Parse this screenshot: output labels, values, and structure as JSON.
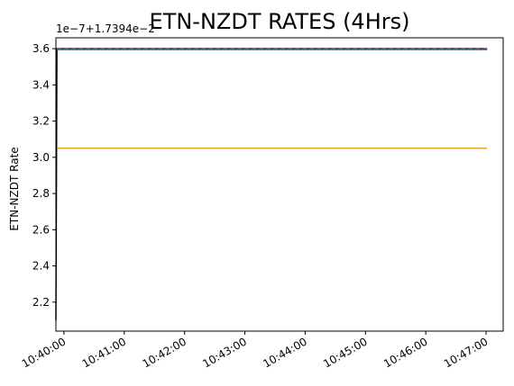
{
  "chart_data": {
    "type": "line",
    "title": "ETN-NZDT RATES (4Hrs)",
    "ylabel": "ETN-NZDT Rate",
    "xlabel": "",
    "offset_text": "1e−7+1.7394e−2",
    "xlim": [
      "10:39:52",
      "10:47:17"
    ],
    "ylim": [
      2.04,
      3.66
    ],
    "xticks": [
      "10:40:00",
      "10:41:00",
      "10:42:00",
      "10:43:00",
      "10:44:00",
      "10:45:00",
      "10:46:00",
      "10:47:00"
    ],
    "yticks": [
      "2.2",
      "2.4",
      "2.6",
      "2.8",
      "3.0",
      "3.2",
      "3.4",
      "3.6"
    ],
    "grid": false,
    "series": [
      {
        "color": "#000000",
        "style": "solid",
        "x": [
          "10:39:52",
          "10:39:53",
          "10:47:01"
        ],
        "values": [
          2.1,
          3.6,
          3.6
        ]
      },
      {
        "color": "#ff0000",
        "style": "dashed",
        "x": [
          "10:39:53",
          "10:47:01"
        ],
        "values": [
          3.6,
          3.6
        ]
      },
      {
        "color": "#1f77b4",
        "style": "solid",
        "x": [
          "10:39:53",
          "10:47:01"
        ],
        "values": [
          3.595,
          3.595
        ]
      },
      {
        "color": "#ffa500",
        "style": "solid",
        "x": [
          "10:39:53",
          "10:47:01"
        ],
        "values": [
          3.05,
          3.05
        ]
      }
    ]
  }
}
